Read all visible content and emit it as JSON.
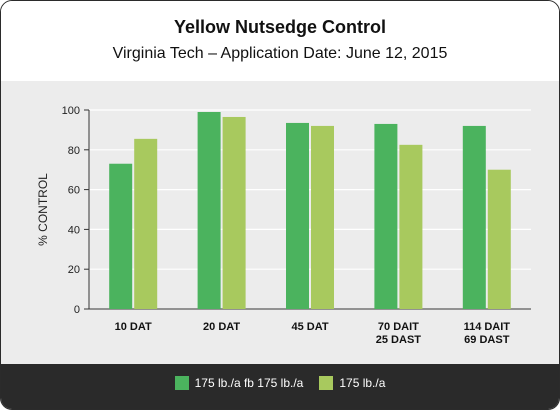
{
  "chart_data": {
    "type": "bar",
    "title": "Yellow Nutsedge Control",
    "subtitle": "Virginia Tech – Application Date: June 12, 2015",
    "ylabel": "% CONTROL",
    "xlabel": "",
    "ylim": [
      0,
      100
    ],
    "yticks": [
      0,
      20,
      40,
      60,
      80,
      100
    ],
    "grid": true,
    "legend_position": "bottom",
    "categories": [
      [
        "10 DAT"
      ],
      [
        "20 DAT"
      ],
      [
        "45 DAT"
      ],
      [
        "70 DAIT",
        "25 DAST"
      ],
      [
        "114 DAIT",
        "69 DAST"
      ]
    ],
    "series": [
      {
        "name": "175 lb./a fb 175 lb./a",
        "color": "#4bb35e",
        "values": [
          73,
          99,
          93.5,
          93,
          92
        ]
      },
      {
        "name": "175 lb./a",
        "color": "#a8c95e",
        "values": [
          85.5,
          96.5,
          92,
          82.5,
          70
        ]
      }
    ]
  }
}
